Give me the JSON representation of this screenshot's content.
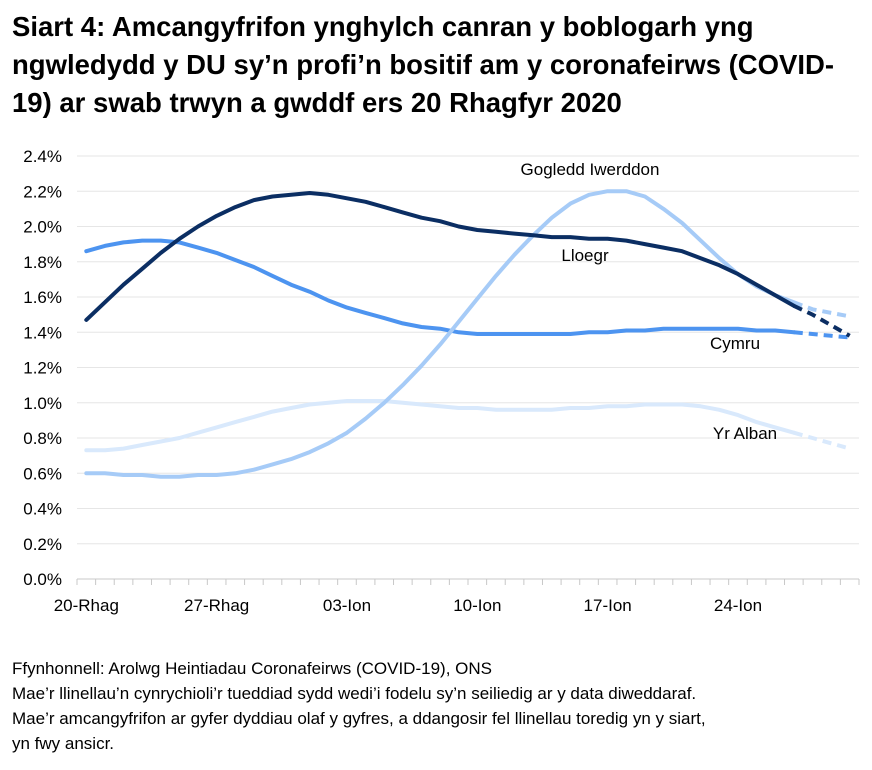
{
  "chart_data": {
    "type": "line",
    "title": "Siart 4: Amcangyfrifon ynghylch canran y boblogarh yng ngwledydd y DU sy’n profi’n bositif am y coronafeirws (COVID-19) ar swab trwyn a gwddf ers 20 Rhagfyr 2020",
    "xlabel": "",
    "ylabel": "",
    "ylim": [
      0,
      2.4
    ],
    "yticks": [
      "0.0%",
      "0.2%",
      "0.4%",
      "0.6%",
      "0.8%",
      "1.0%",
      "1.2%",
      "1.4%",
      "1.6%",
      "1.8%",
      "2.0%",
      "2.2%",
      "2.4%"
    ],
    "x_range": [
      "20-Rhag",
      "30-Ion"
    ],
    "xtick_labels": [
      "20-Rhag",
      "27-Rhag",
      "03-Ion",
      "10-Ion",
      "17-Ion",
      "24-Ion"
    ],
    "days_count": 42,
    "dashed_from_day_index": 38,
    "grid": true,
    "legend": "inline labels",
    "series": [
      {
        "name": "Lloegr",
        "color": "#0b2e63",
        "values": [
          1.47,
          1.57,
          1.67,
          1.76,
          1.85,
          1.93,
          2.0,
          2.06,
          2.11,
          2.15,
          2.17,
          2.18,
          2.19,
          2.18,
          2.16,
          2.14,
          2.11,
          2.08,
          2.05,
          2.03,
          2.0,
          1.98,
          1.97,
          1.96,
          1.95,
          1.94,
          1.94,
          1.93,
          1.93,
          1.92,
          1.9,
          1.88,
          1.86,
          1.82,
          1.78,
          1.73,
          1.67,
          1.61,
          1.55,
          1.5,
          1.44,
          1.38
        ]
      },
      {
        "name": "Gogledd Iwerddon",
        "color": "#a6cbf7",
        "values": [
          0.6,
          0.6,
          0.59,
          0.59,
          0.58,
          0.58,
          0.59,
          0.59,
          0.6,
          0.62,
          0.65,
          0.68,
          0.72,
          0.77,
          0.83,
          0.91,
          1.0,
          1.1,
          1.21,
          1.33,
          1.46,
          1.59,
          1.72,
          1.84,
          1.95,
          2.05,
          2.13,
          2.18,
          2.2,
          2.2,
          2.17,
          2.1,
          2.02,
          1.92,
          1.82,
          1.73,
          1.66,
          1.61,
          1.57,
          1.53,
          1.51,
          1.49
        ]
      },
      {
        "name": "Cymru",
        "color": "#4d94f0",
        "values": [
          1.86,
          1.89,
          1.91,
          1.92,
          1.92,
          1.91,
          1.88,
          1.85,
          1.81,
          1.77,
          1.72,
          1.67,
          1.63,
          1.58,
          1.54,
          1.51,
          1.48,
          1.45,
          1.43,
          1.42,
          1.4,
          1.39,
          1.39,
          1.39,
          1.39,
          1.39,
          1.39,
          1.4,
          1.4,
          1.41,
          1.41,
          1.42,
          1.42,
          1.42,
          1.42,
          1.42,
          1.41,
          1.41,
          1.4,
          1.39,
          1.38,
          1.37
        ]
      },
      {
        "name": "Yr Alban",
        "color": "#d9e9fc",
        "values": [
          0.73,
          0.73,
          0.74,
          0.76,
          0.78,
          0.8,
          0.83,
          0.86,
          0.89,
          0.92,
          0.95,
          0.97,
          0.99,
          1.0,
          1.01,
          1.01,
          1.01,
          1.0,
          0.99,
          0.98,
          0.97,
          0.97,
          0.96,
          0.96,
          0.96,
          0.96,
          0.97,
          0.97,
          0.98,
          0.98,
          0.99,
          0.99,
          0.99,
          0.98,
          0.96,
          0.93,
          0.89,
          0.86,
          0.83,
          0.8,
          0.77,
          0.74
        ]
      }
    ]
  },
  "notes": {
    "source": "Ffynhonnell: Arolwg Heintiadau Coronafeirws (COVID-19), ONS",
    "note1": "Mae’r llinellau’n cynrychioli’r tueddiad sydd wedi’i fodelu sy’n seiliedig ar y data diweddaraf.",
    "note2": "Mae’r amcangyfrifon ar gyfer dyddiau olaf y gyfres, a ddangosir fel llinellau toredig yn y siart,",
    "note3": "yn fwy ansicr."
  }
}
